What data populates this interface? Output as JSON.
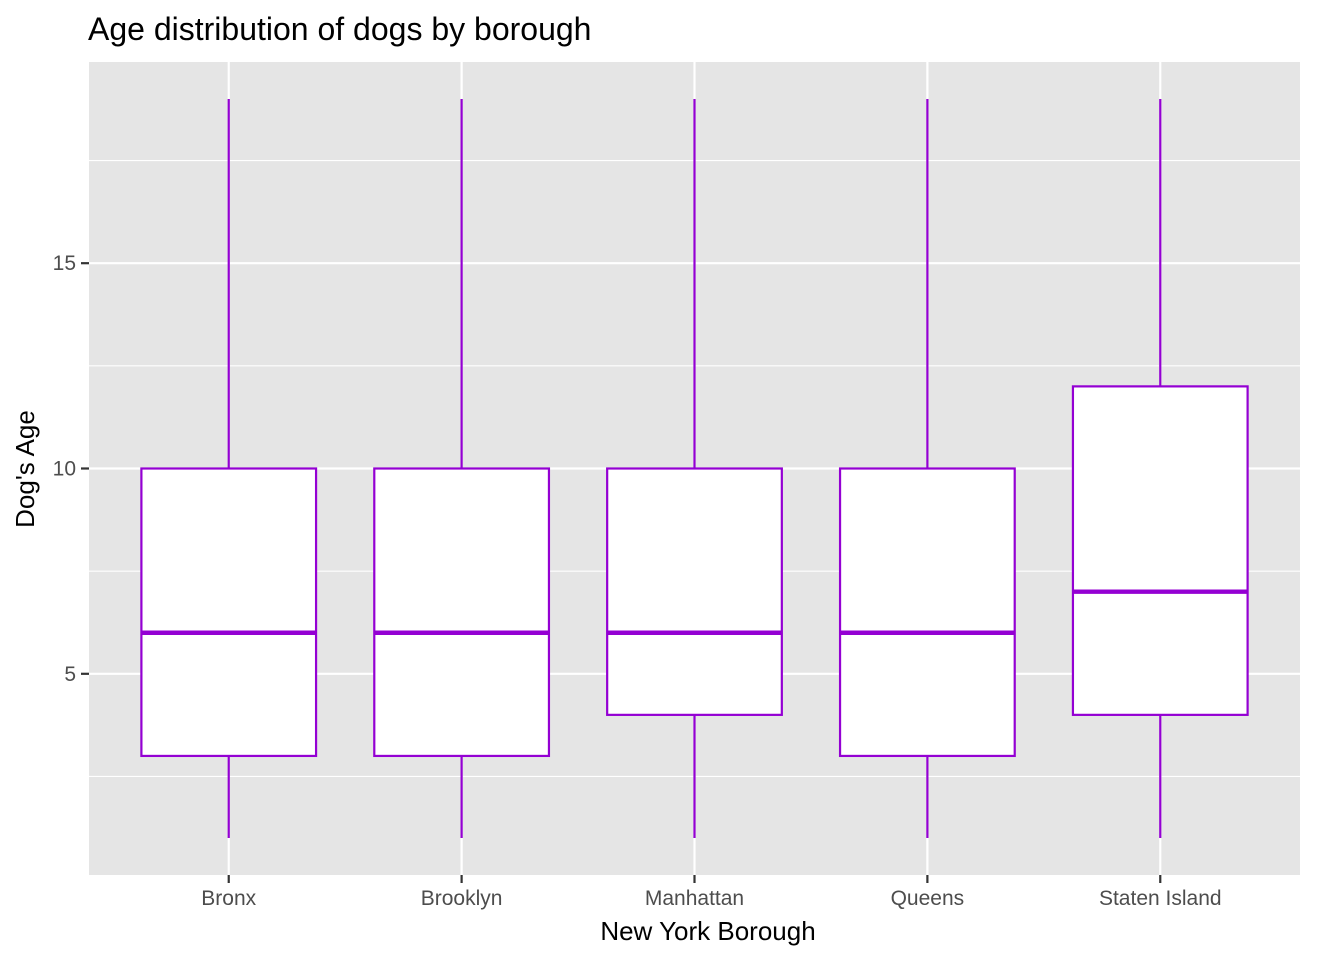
{
  "chart_data": {
    "type": "boxplot",
    "title": "Age distribution of dogs by borough",
    "xlabel": "New York Borough",
    "ylabel": "Dog's Age",
    "categories": [
      "Bronx",
      "Brooklyn",
      "Manhattan",
      "Queens",
      "Staten Island"
    ],
    "boxes": [
      {
        "category": "Bronx",
        "whisker_low": 1,
        "q1": 3,
        "median": 6,
        "q3": 10,
        "whisker_high": 19
      },
      {
        "category": "Brooklyn",
        "whisker_low": 1,
        "q1": 3,
        "median": 6,
        "q3": 10,
        "whisker_high": 19
      },
      {
        "category": "Manhattan",
        "whisker_low": 1,
        "q1": 4,
        "median": 6,
        "q3": 10,
        "whisker_high": 19
      },
      {
        "category": "Queens",
        "whisker_low": 1,
        "q1": 3,
        "median": 6,
        "q3": 10,
        "whisker_high": 19
      },
      {
        "category": "Staten Island",
        "whisker_low": 1,
        "q1": 4,
        "median": 7,
        "q3": 12,
        "whisker_high": 19
      }
    ],
    "ylim": [
      0.1,
      19.9
    ],
    "yticks": [
      5,
      10,
      15
    ],
    "ytick_labels": [
      "5",
      "10",
      "15"
    ],
    "grid": true,
    "colors": {
      "box_stroke": "#9400D3",
      "box_fill": "#FFFFFF",
      "panel_background": "#E5E5E5",
      "grid": "#FFFFFF"
    }
  }
}
